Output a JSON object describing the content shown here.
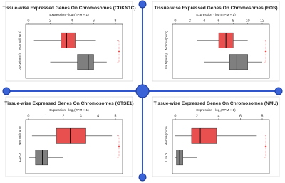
{
  "chart_data": [
    {
      "type": "box",
      "title": "Tissue-wise Expressed Genes On Chromosomes (CDKN1C)",
      "xlabel": "Expression - log₂(TPM + 1)",
      "categories": [
        "Normal(num)",
        "LUAD(num)"
      ],
      "xlim": [
        0,
        8
      ],
      "xticks": [
        0,
        2,
        4,
        6,
        8
      ],
      "boxes": [
        {
          "color": "#e8504f",
          "whislo": 0.5,
          "q1": 3,
          "med": 3.5,
          "q3": 4.3,
          "whishi": 6.2
        },
        {
          "color": "#7f7f7f",
          "whislo": 2,
          "q1": 4.5,
          "med": 5.5,
          "q3": 6,
          "whishi": 7.2
        }
      ]
    },
    {
      "type": "box",
      "title": "Tissue-wise Expressed Genes On Chromosomes (FOS)",
      "xlabel": "Expression - log₂(TPM + 1)",
      "categories": [
        "Normal(num)",
        "LUAD(num)"
      ],
      "xlim": [
        0,
        12
      ],
      "xticks": [
        0,
        2,
        4,
        6,
        8,
        10,
        12
      ],
      "boxes": [
        {
          "color": "#e8504f",
          "whislo": 3,
          "q1": 6,
          "med": 7,
          "q3": 8,
          "whishi": 10
        },
        {
          "color": "#7f7f7f",
          "whislo": 4,
          "q1": 7.5,
          "med": 8.5,
          "q3": 10,
          "whishi": 12
        }
      ]
    },
    {
      "type": "box",
      "title": "Tissue-wise Expressed Genes On Chromosomes (GTSE1)",
      "xlabel": "Expression - log₂(TPM + 1)",
      "categories": [
        "Normal(num)",
        "LUAD"
      ],
      "xlim": [
        0,
        5
      ],
      "xticks": [
        0,
        1,
        2,
        3,
        4,
        5
      ],
      "boxes": [
        {
          "color": "#e8504f",
          "whislo": 0.2,
          "q1": 1.6,
          "med": 2.4,
          "q3": 3.3,
          "whishi": 4.8
        },
        {
          "color": "#7f7f7f",
          "whislo": 0,
          "q1": 0.4,
          "med": 0.8,
          "q3": 1.1,
          "whishi": 2
        }
      ]
    },
    {
      "type": "box",
      "title": "Tissue-wise Expressed Genes On Chromosomes (NMU)",
      "xlabel": "Expression - log₂(TPM + 1)",
      "categories": [
        "Normal(num)",
        "LUAD"
      ],
      "xlim": [
        0,
        8
      ],
      "xticks": [
        0,
        2,
        4,
        6,
        8
      ],
      "boxes": [
        {
          "color": "#e8504f",
          "whislo": 0,
          "q1": 1.5,
          "med": 2.3,
          "q3": 3.8,
          "whishi": 7.5
        },
        {
          "color": "#7f7f7f",
          "whislo": 0,
          "q1": 0.1,
          "med": 0.4,
          "q3": 0.7,
          "whishi": 2
        }
      ]
    }
  ]
}
